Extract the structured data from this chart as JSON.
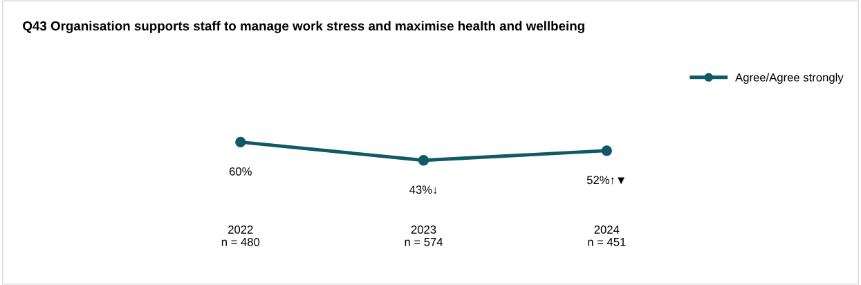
{
  "chart_data": {
    "type": "line",
    "title": "Q43 Organisation supports staff to manage work stress and maximise health and wellbeing",
    "categories": [
      "2022\nn = 480",
      "2023\nn = 574",
      "2024\nn = 451"
    ],
    "series": [
      {
        "name": "Agree/Agree strongly",
        "color": "#0f5a66",
        "values": [
          60,
          43,
          52
        ],
        "value_labels": [
          "60%",
          "43%↓",
          "52%↑▼"
        ]
      }
    ],
    "tick_labels": "x",
    "marker": "circle",
    "line_style": "solid",
    "legend": "top right",
    "grid": false
  }
}
